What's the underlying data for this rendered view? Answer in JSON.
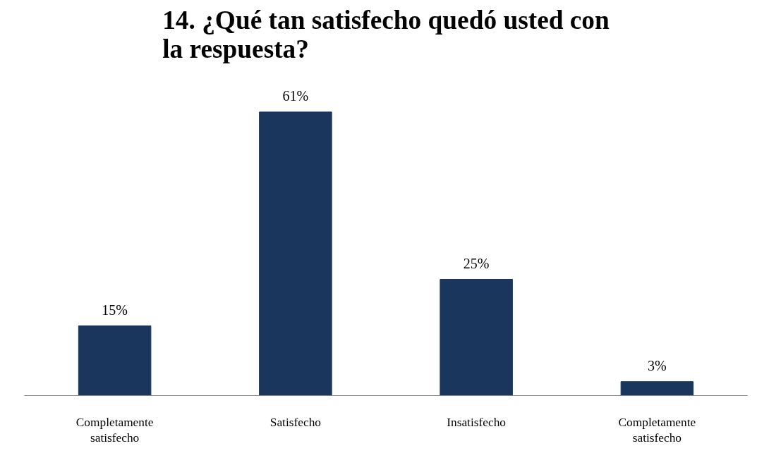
{
  "chart_data": {
    "type": "bar",
    "title": "14. ¿Qué tan satisfecho quedó usted con la respuesta?",
    "categories": [
      "Completamente satisfecho",
      "Satisfecho",
      "Insatisfecho",
      "Completamente satisfecho"
    ],
    "values": [
      15,
      61,
      25,
      3
    ],
    "value_labels": [
      "15%",
      "61%",
      "25%",
      "3%"
    ],
    "color": "#1b365d"
  }
}
